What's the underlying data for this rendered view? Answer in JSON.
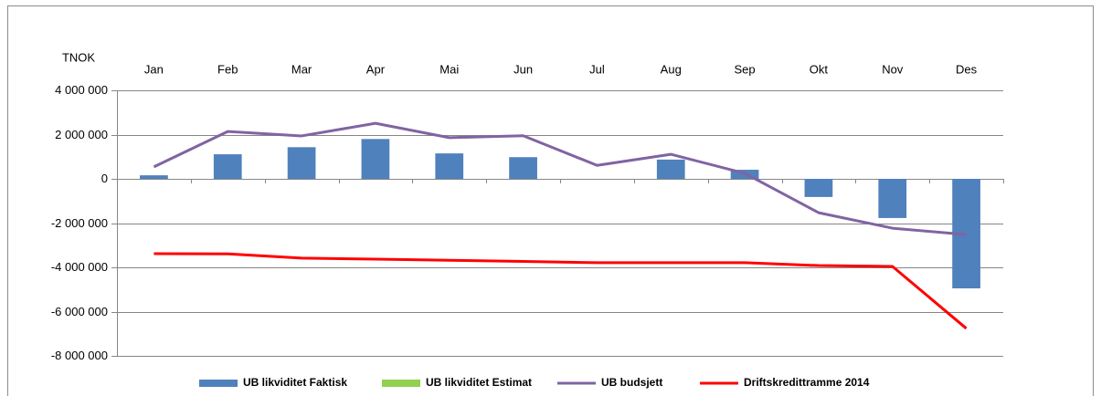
{
  "chart_data": {
    "type": "combo",
    "y_axis_label": "TNOK",
    "categories": [
      "Jan",
      "Feb",
      "Mar",
      "Apr",
      "Mai",
      "Jun",
      "Jul",
      "Aug",
      "Sep",
      "Okt",
      "Nov",
      "Des"
    ],
    "series": [
      {
        "name": "UB likviditet Faktisk",
        "type": "bar",
        "color": "#4f81bd",
        "values": [
          160000,
          1110000,
          1430000,
          1800000,
          1150000,
          980000,
          null,
          870000,
          410000,
          -820000,
          -1770000,
          -4950000
        ]
      },
      {
        "name": "UB likviditet Estimat",
        "type": "bar",
        "color": "#92d050",
        "values": [
          null,
          null,
          null,
          null,
          null,
          null,
          null,
          null,
          null,
          null,
          null,
          null
        ]
      },
      {
        "name": "UB budsjett",
        "type": "line",
        "color": "#8064a2",
        "values": [
          540000,
          2140000,
          1940000,
          2510000,
          1860000,
          1950000,
          610000,
          1110000,
          250000,
          -1530000,
          -2230000,
          -2520000
        ]
      },
      {
        "name": "Driftskredittramme 2014",
        "type": "line",
        "color": "#ff0000",
        "values": [
          -3380000,
          -3390000,
          -3580000,
          -3630000,
          -3680000,
          -3730000,
          -3790000,
          -3790000,
          -3790000,
          -3920000,
          -3960000,
          -6760000
        ]
      }
    ],
    "ylim": [
      -8000000,
      4000000
    ],
    "yticks": [
      {
        "value": -8000000,
        "label": "-8 000 000"
      },
      {
        "value": -6000000,
        "label": "-6 000 000"
      },
      {
        "value": -4000000,
        "label": "-4 000 000"
      },
      {
        "value": -2000000,
        "label": "-2 000 000"
      },
      0,
      {
        "value": 2000000,
        "label": "2 000 000"
      },
      {
        "value": 4000000,
        "label": "4 000 000"
      }
    ],
    "grid": true,
    "legend": "bottom"
  }
}
